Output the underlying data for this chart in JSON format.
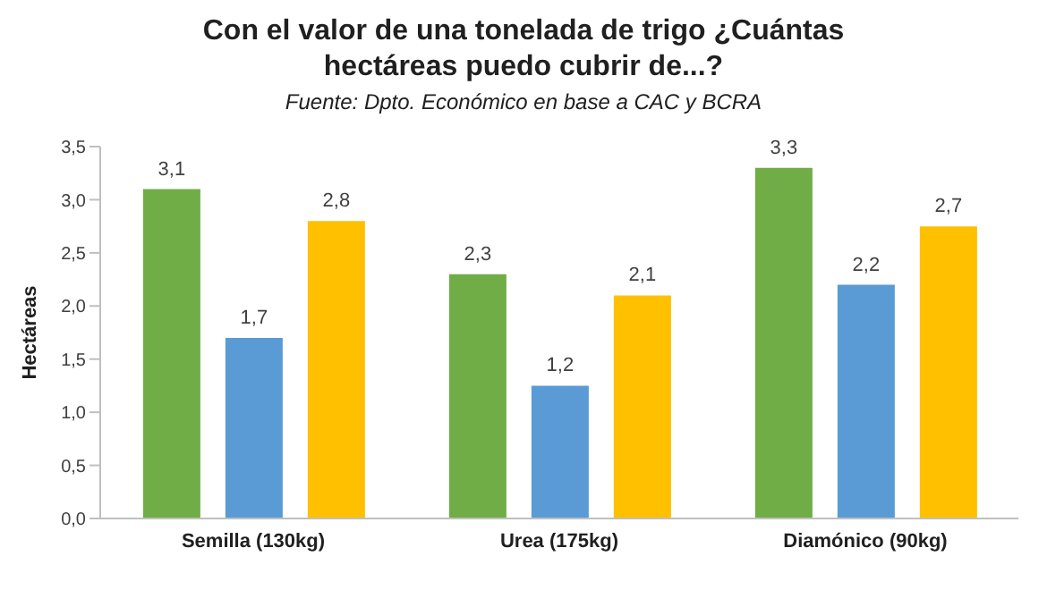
{
  "chart_data": {
    "type": "bar",
    "title": "Con el valor de una tonelada de trigo ¿Cuántas hectáreas puedo cubrir de...?",
    "subtitle": "Fuente: Dpto. Económico en base a CAC y BCRA",
    "ylabel": "Hectáreas",
    "categories": [
      "Semilla (130kg)",
      "Urea (175kg)",
      "Diamónico (90kg)"
    ],
    "series": [
      {
        "color": "#70ad47",
        "values": [
          3.1,
          2.3,
          3.3
        ],
        "value_labels": [
          "3,1",
          "2,3",
          "3,3"
        ]
      },
      {
        "color": "#5b9bd5",
        "values": [
          1.7,
          1.25,
          2.2
        ],
        "value_labels": [
          "1,7",
          "1,2",
          "2,2"
        ]
      },
      {
        "color": "#ffc000",
        "values": [
          2.8,
          2.1,
          2.75
        ],
        "value_labels": [
          "2,8",
          "2,1",
          "2,7"
        ]
      }
    ],
    "ylim": [
      0,
      3.5
    ],
    "yticks": [
      {
        "value": 0,
        "label": "0,0"
      },
      {
        "value": 0.5,
        "label": "0,5"
      },
      {
        "value": 1,
        "label": "1,0"
      },
      {
        "value": 1.5,
        "label": "1,5"
      },
      {
        "value": 2,
        "label": "2,0"
      },
      {
        "value": 2.5,
        "label": "2,5"
      },
      {
        "value": 3,
        "label": "3,0"
      },
      {
        "value": 3.5,
        "label": "3,5"
      }
    ],
    "grid": false,
    "legend": false
  }
}
